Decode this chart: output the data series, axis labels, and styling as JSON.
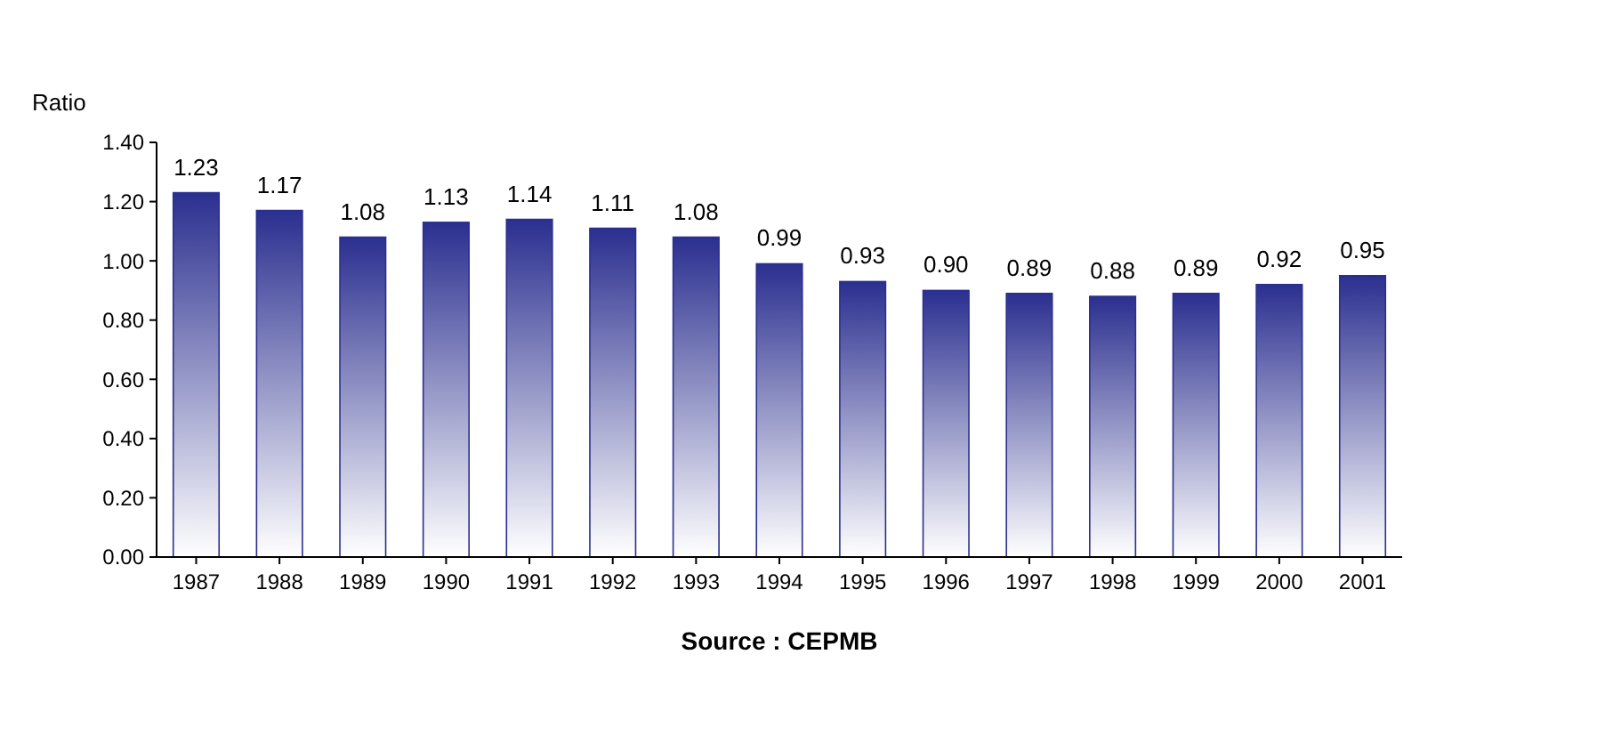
{
  "chart_data": {
    "type": "bar",
    "ylabel": "Ratio",
    "categories": [
      "1987",
      "1988",
      "1989",
      "1990",
      "1991",
      "1992",
      "1993",
      "1994",
      "1995",
      "1996",
      "1997",
      "1998",
      "1999",
      "2000",
      "2001"
    ],
    "values": [
      1.23,
      1.17,
      1.08,
      1.13,
      1.14,
      1.11,
      1.08,
      0.99,
      0.93,
      0.9,
      0.89,
      0.88,
      0.89,
      0.92,
      0.95
    ],
    "value_labels": [
      "1.23",
      "1.17",
      "1.08",
      "1.13",
      "1.14",
      "1.11",
      "1.08",
      "0.99",
      "0.93",
      "0.90",
      "0.89",
      "0.88",
      "0.89",
      "0.92",
      "0.95"
    ],
    "color": "#2b2f8f",
    "ylim": [
      0,
      1.4
    ],
    "yticks": [
      {
        "value": 0,
        "label": "0.00"
      },
      {
        "value": 0.2,
        "label": "0.20"
      },
      {
        "value": 0.4,
        "label": "0.40"
      },
      {
        "value": 0.6,
        "label": "0.60"
      },
      {
        "value": 0.8,
        "label": "0.80"
      },
      {
        "value": 1,
        "label": "1.00"
      },
      {
        "value": 1.2,
        "label": "1.20"
      },
      {
        "value": 1.4,
        "label": "1.40"
      }
    ],
    "annotations": [
      "Source : CEPMB"
    ]
  }
}
